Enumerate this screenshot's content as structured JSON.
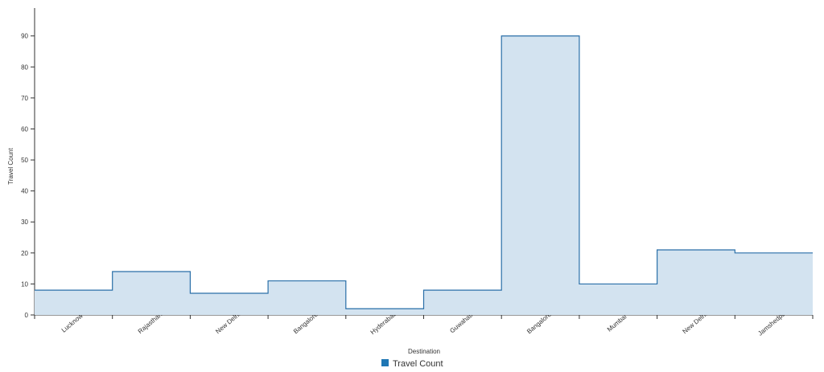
{
  "chart_data": {
    "type": "area",
    "step": true,
    "categories": [
      "Lucknow",
      "Rajasthan",
      "New Delhi",
      "Bangalore",
      "Hyderabad",
      "Guwahati",
      "Bangalore",
      "Mumbai",
      "New Delhi",
      "Jamshedpur"
    ],
    "series": [
      {
        "name": "Travel Count",
        "values": [
          8,
          14,
          7,
          11,
          2,
          8,
          90,
          10,
          21,
          20
        ]
      }
    ],
    "xlabel": "Destination",
    "ylabel": "Travel Count",
    "ylim": [
      0,
      99
    ],
    "yticks": [
      0,
      10,
      20,
      30,
      40,
      50,
      60,
      70,
      80,
      90
    ],
    "legend": "bottom-center",
    "colors": {
      "fill": "#d3e3f0",
      "stroke": "#2a6fa8",
      "legend": "#1f77b4",
      "axis": "#333333"
    }
  }
}
